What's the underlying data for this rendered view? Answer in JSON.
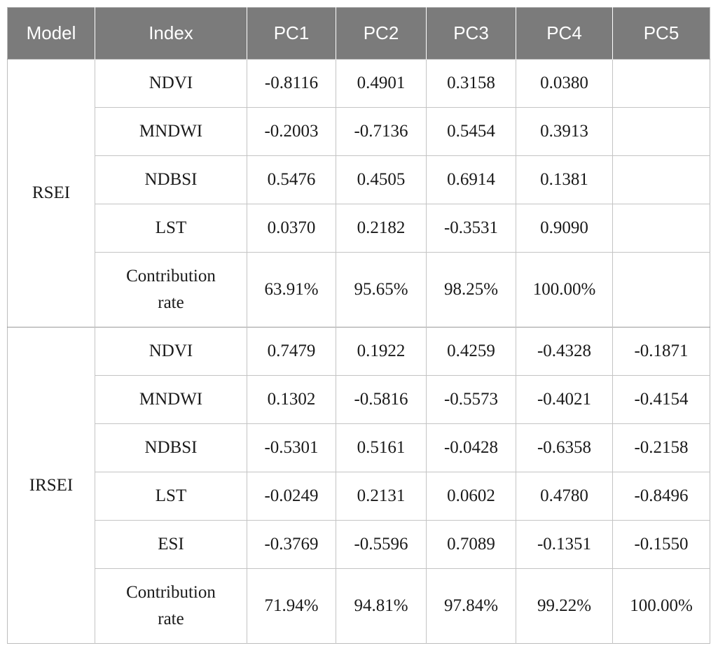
{
  "table": {
    "headers": [
      "Model",
      "Index",
      "PC1",
      "PC2",
      "PC3",
      "PC4",
      "PC5"
    ],
    "groups": [
      {
        "model": "RSEI",
        "rows": [
          {
            "index": "NDVI",
            "values": [
              "-0.8116",
              "0.4901",
              "0.3158",
              "0.0380",
              ""
            ]
          },
          {
            "index": "MNDWI",
            "values": [
              "-0.2003",
              "-0.7136",
              "0.5454",
              "0.3913",
              ""
            ]
          },
          {
            "index": "NDBSI",
            "values": [
              "0.5476",
              "0.4505",
              "0.6914",
              "0.1381",
              ""
            ]
          },
          {
            "index": "LST",
            "values": [
              "0.0370",
              "0.2182",
              "-0.3531",
              "0.9090",
              ""
            ]
          },
          {
            "index": "Contribution rate",
            "values": [
              "63.91%",
              "95.65%",
              "98.25%",
              "100.00%",
              ""
            ]
          }
        ]
      },
      {
        "model": "IRSEI",
        "rows": [
          {
            "index": "NDVI",
            "values": [
              "0.7479",
              "0.1922",
              "0.4259",
              "-0.4328",
              "-0.1871"
            ]
          },
          {
            "index": "MNDWI",
            "values": [
              "0.1302",
              "-0.5816",
              "-0.5573",
              "-0.4021",
              "-0.4154"
            ]
          },
          {
            "index": "NDBSI",
            "values": [
              "-0.5301",
              "0.5161",
              "-0.0428",
              "-0.6358",
              "-0.2158"
            ]
          },
          {
            "index": "LST",
            "values": [
              "-0.0249",
              "0.2131",
              "0.0602",
              "0.4780",
              "-0.8496"
            ]
          },
          {
            "index": "ESI",
            "values": [
              "-0.3769",
              "-0.5596",
              "0.7089",
              "-0.1351",
              "-0.1550"
            ]
          },
          {
            "index": "Contribution rate",
            "values": [
              "71.94%",
              "94.81%",
              "97.84%",
              "99.22%",
              "100.00%"
            ]
          }
        ]
      }
    ]
  }
}
